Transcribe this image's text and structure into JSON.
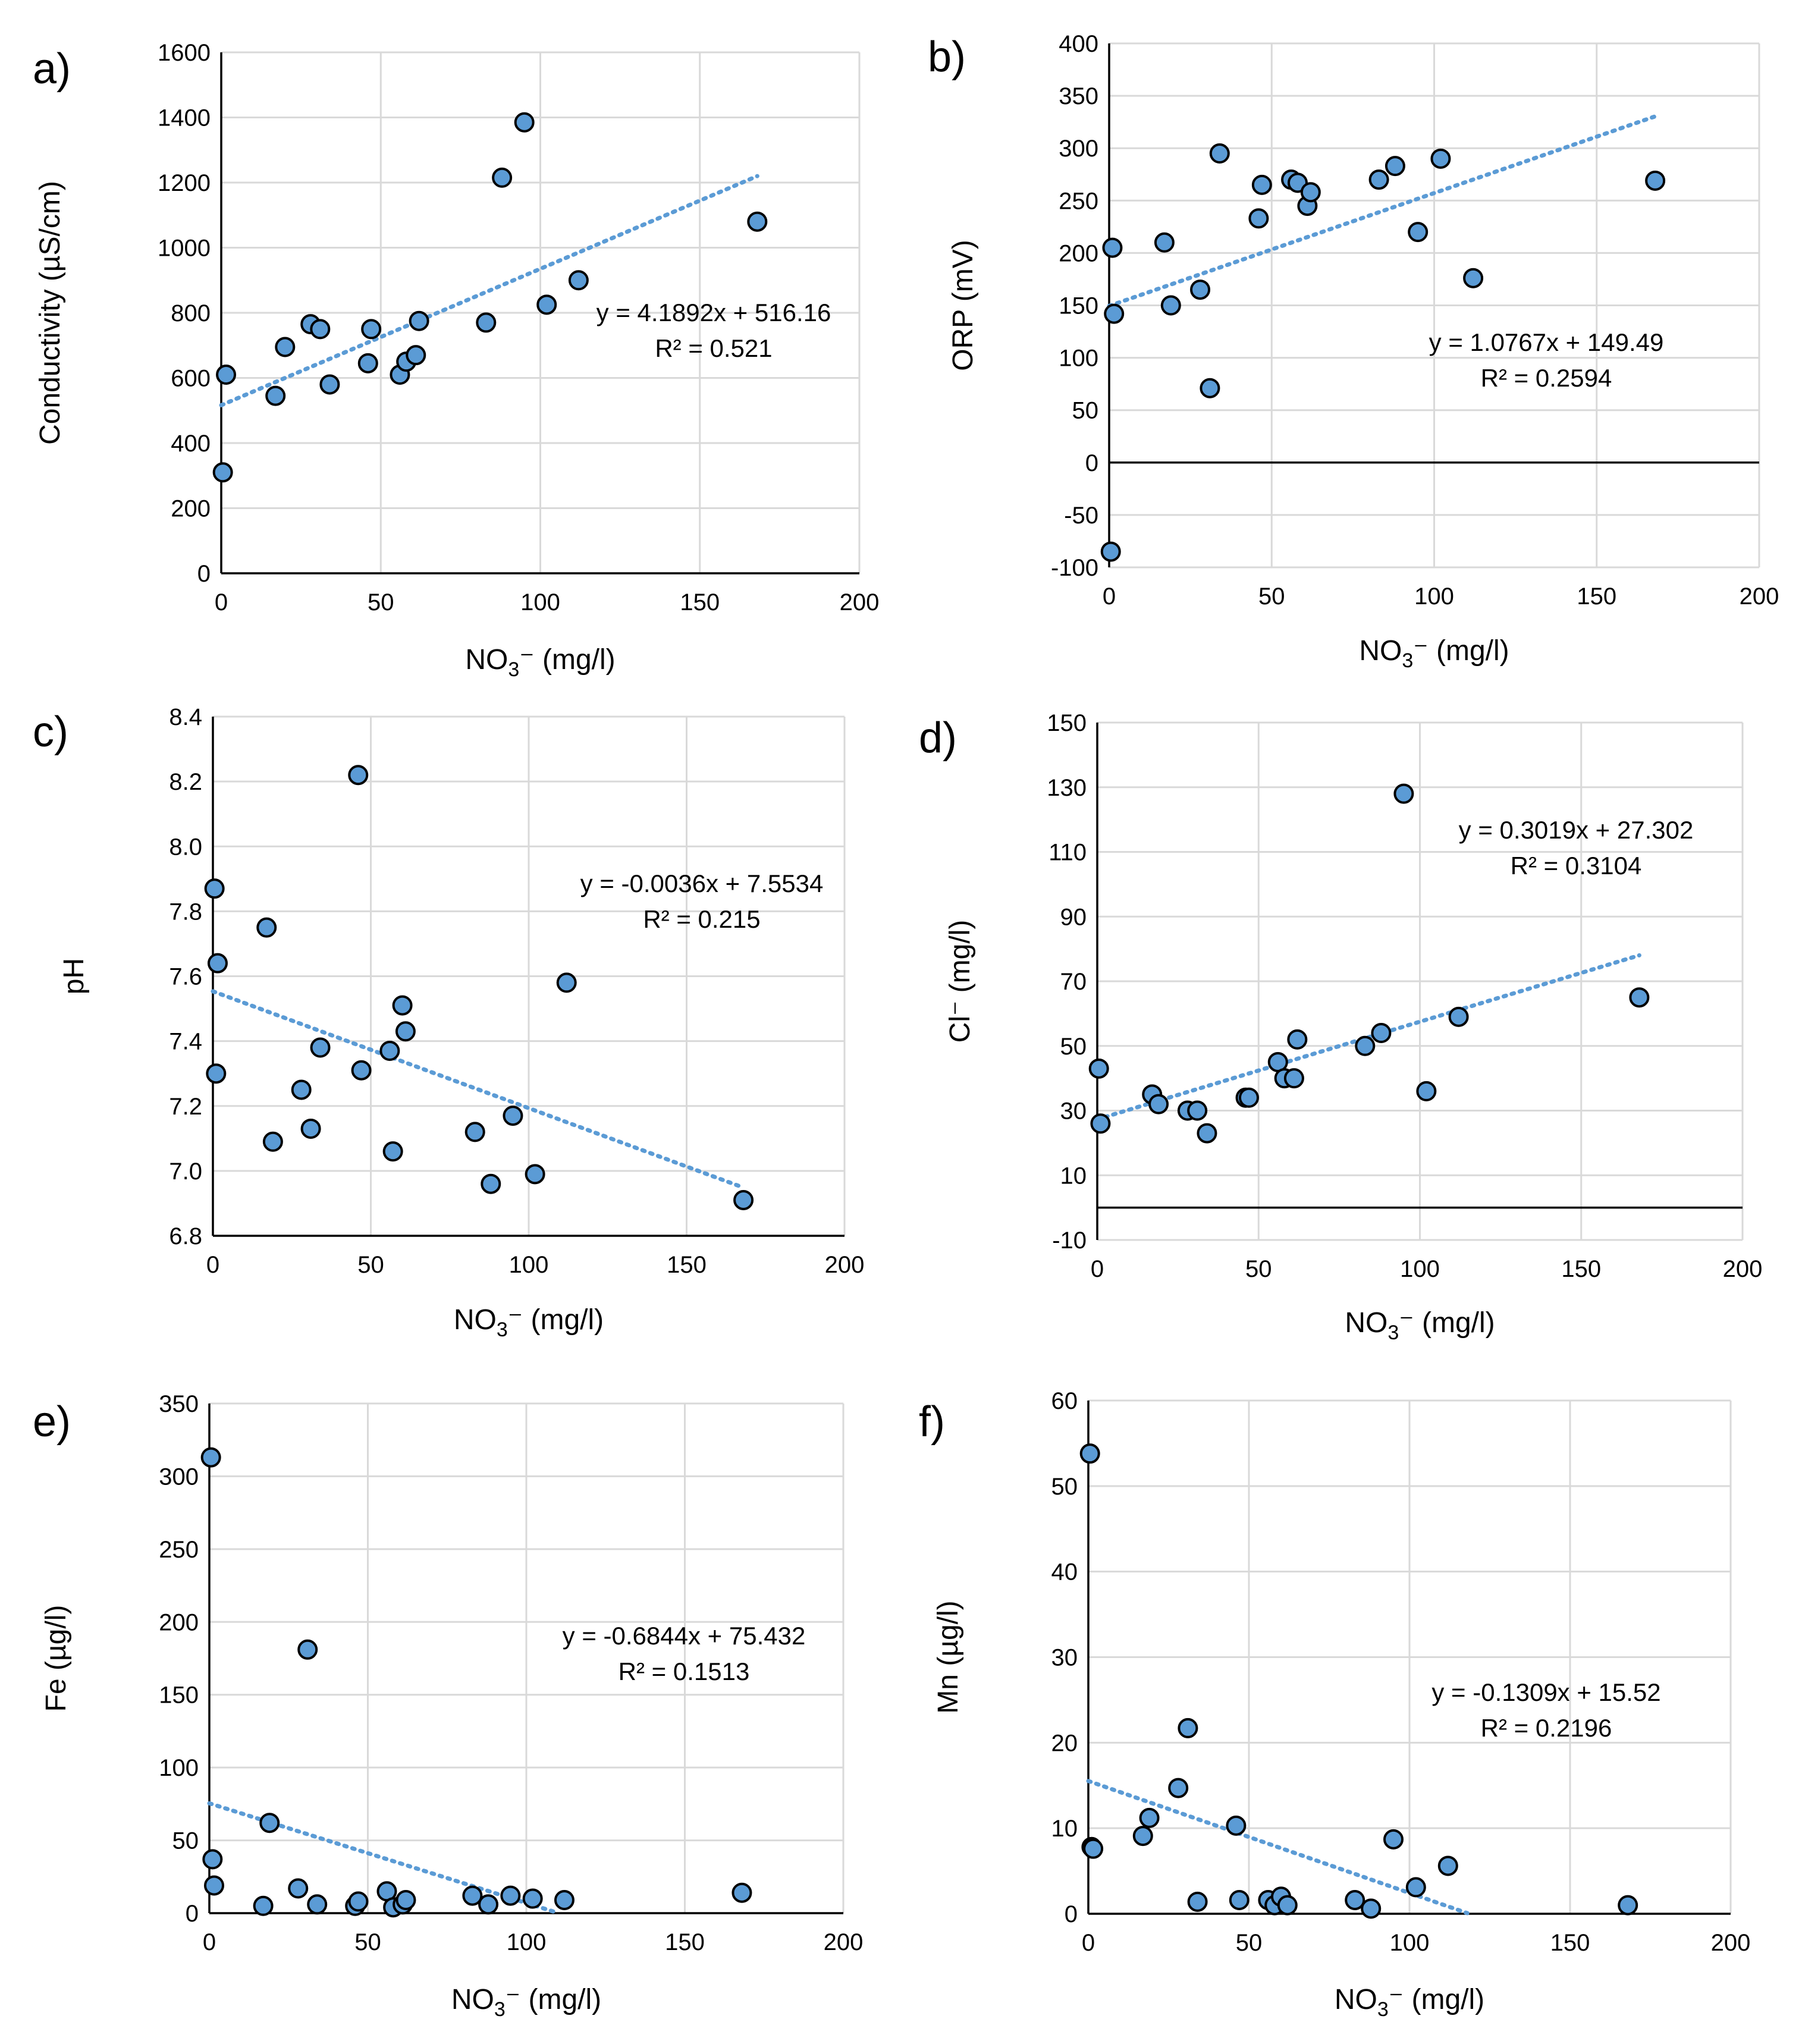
{
  "chart_data": [
    {
      "panel": "a)",
      "type": "scatter",
      "xlabel": "NO3⁻ (mg/l)",
      "xlabel_base": "NO",
      "xlabel_sub": "3",
      "xlabel_rest": "⁻ (mg/l)",
      "ylabel": "Conductivity (µS/cm)",
      "xlim": [
        0,
        200
      ],
      "ylim": [
        0,
        1600
      ],
      "xticks": [
        0,
        50,
        100,
        150,
        200
      ],
      "yticks": [
        0,
        200,
        400,
        600,
        800,
        1000,
        1200,
        1400,
        1600
      ],
      "grid": true,
      "equation": "y = 4.1892x + 516.16",
      "r2": "R² = 0.521",
      "trendline": {
        "slope": 4.1892,
        "intercept": 516.16,
        "x_range": [
          0,
          168
        ]
      },
      "points": [
        [
          0.5,
          310
        ],
        [
          1.5,
          610
        ],
        [
          17,
          545
        ],
        [
          20,
          695
        ],
        [
          28,
          765
        ],
        [
          31,
          750
        ],
        [
          34,
          580
        ],
        [
          46,
          645
        ],
        [
          47,
          750
        ],
        [
          56,
          610
        ],
        [
          58,
          650
        ],
        [
          61,
          670
        ],
        [
          62,
          775
        ],
        [
          83,
          770
        ],
        [
          88,
          1215
        ],
        [
          95,
          1385
        ],
        [
          102,
          825
        ],
        [
          112,
          900
        ],
        [
          168,
          1080
        ]
      ]
    },
    {
      "panel": "b)",
      "type": "scatter",
      "xlabel": "NO3⁻ (mg/l)",
      "xlabel_base": "NO",
      "xlabel_sub": "3",
      "xlabel_rest": "⁻ (mg/l)",
      "ylabel": "ORP (mV)",
      "xlim": [
        0,
        200
      ],
      "ylim": [
        -100,
        400
      ],
      "xticks": [
        0,
        50,
        100,
        150,
        200
      ],
      "yticks": [
        -100,
        -50,
        0,
        50,
        100,
        150,
        200,
        250,
        300,
        350,
        400
      ],
      "grid": true,
      "equation": "y = 1.0767x + 149.49",
      "r2": "R² = 0.2594",
      "trendline": {
        "slope": 1.0767,
        "intercept": 149.49,
        "x_range": [
          0,
          168
        ]
      },
      "points": [
        [
          0.5,
          -85
        ],
        [
          1,
          205
        ],
        [
          1.5,
          142
        ],
        [
          17,
          210
        ],
        [
          19,
          150
        ],
        [
          28,
          165
        ],
        [
          31,
          71
        ],
        [
          34,
          295
        ],
        [
          46,
          233
        ],
        [
          47,
          265
        ],
        [
          56,
          270
        ],
        [
          58,
          267
        ],
        [
          61,
          245
        ],
        [
          62,
          258
        ],
        [
          83,
          270
        ],
        [
          88,
          283
        ],
        [
          95,
          220
        ],
        [
          102,
          290
        ],
        [
          112,
          176
        ],
        [
          168,
          269
        ]
      ]
    },
    {
      "panel": "c)",
      "type": "scatter",
      "xlabel": "NO3⁻ (mg/l)",
      "xlabel_base": "NO",
      "xlabel_sub": "3",
      "xlabel_rest": "⁻ (mg/l)",
      "ylabel": "pH",
      "xlim": [
        0,
        200
      ],
      "ylim": [
        6.8,
        8.4
      ],
      "xticks": [
        0,
        50,
        100,
        150,
        200
      ],
      "yticks": [
        6.8,
        7.0,
        7.2,
        7.4,
        7.6,
        7.8,
        8.0,
        8.2,
        8.4
      ],
      "ytick_labels": [
        "6.8",
        "7.0",
        "7.2",
        "7.4",
        "7.6",
        "7.8",
        "8.0",
        "8.2",
        "8.4"
      ],
      "grid": true,
      "equation": "y = -0.0036x + 7.5534",
      "r2": "R² = 0.215",
      "trendline": {
        "slope": -0.0036,
        "intercept": 7.5534,
        "x_range": [
          0,
          168
        ]
      },
      "points": [
        [
          0.5,
          7.87
        ],
        [
          1,
          7.3
        ],
        [
          1.5,
          7.64
        ],
        [
          17,
          7.75
        ],
        [
          19,
          7.09
        ],
        [
          28,
          7.25
        ],
        [
          31,
          7.13
        ],
        [
          34,
          7.38
        ],
        [
          46,
          8.22
        ],
        [
          47,
          7.31
        ],
        [
          56,
          7.37
        ],
        [
          57,
          7.06
        ],
        [
          60,
          7.51
        ],
        [
          61,
          7.43
        ],
        [
          83,
          7.12
        ],
        [
          88,
          6.96
        ],
        [
          95,
          7.17
        ],
        [
          102,
          6.99
        ],
        [
          112,
          7.58
        ],
        [
          168,
          6.91
        ]
      ]
    },
    {
      "panel": "d)",
      "type": "scatter",
      "xlabel": "NO3⁻ (mg/l)",
      "xlabel_base": "NO",
      "xlabel_sub": "3",
      "xlabel_rest": "⁻ (mg/l)",
      "ylabel": "Cl⁻ (mg/l)",
      "xlim": [
        0,
        200
      ],
      "ylim": [
        -10,
        150
      ],
      "xticks": [
        0,
        50,
        100,
        150,
        200
      ],
      "yticks": [
        -10,
        10,
        30,
        50,
        70,
        90,
        110,
        130,
        150
      ],
      "grid": true,
      "equation": "y = 0.3019x + 27.302",
      "r2": "R² = 0.3104",
      "trendline": {
        "slope": 0.3019,
        "intercept": 27.302,
        "x_range": [
          0,
          168
        ]
      },
      "points": [
        [
          0.5,
          43
        ],
        [
          1,
          26
        ],
        [
          17,
          35
        ],
        [
          19,
          32
        ],
        [
          28,
          30
        ],
        [
          31,
          30
        ],
        [
          34,
          23
        ],
        [
          46,
          34
        ],
        [
          47,
          34
        ],
        [
          56,
          45
        ],
        [
          58,
          40
        ],
        [
          61,
          40
        ],
        [
          62,
          52
        ],
        [
          83,
          50
        ],
        [
          88,
          54
        ],
        [
          95,
          128
        ],
        [
          102,
          36
        ],
        [
          112,
          59
        ],
        [
          168,
          65
        ]
      ]
    },
    {
      "panel": "e)",
      "type": "scatter",
      "xlabel": "NO3⁻ (mg/l)",
      "xlabel_base": "NO",
      "xlabel_sub": "3",
      "xlabel_rest": "⁻ (mg/l)",
      "ylabel": "Fe (µg/l)",
      "xlim": [
        0,
        200
      ],
      "ylim": [
        0,
        350
      ],
      "xticks": [
        0,
        50,
        100,
        150,
        200
      ],
      "yticks": [
        0,
        50,
        100,
        150,
        200,
        250,
        300,
        350
      ],
      "grid": true,
      "equation": "y = -0.6844x + 75.432",
      "r2": "R² = 0.1513",
      "trendline": {
        "slope": -0.6844,
        "intercept": 75.432,
        "x_range": [
          0,
          110
        ]
      },
      "points": [
        [
          0.5,
          313
        ],
        [
          1,
          37
        ],
        [
          1.5,
          19
        ],
        [
          17,
          5
        ],
        [
          19,
          62
        ],
        [
          28,
          17
        ],
        [
          31,
          181
        ],
        [
          34,
          6
        ],
        [
          46,
          5
        ],
        [
          47,
          8
        ],
        [
          56,
          15
        ],
        [
          58,
          4
        ],
        [
          61,
          6
        ],
        [
          62,
          9
        ],
        [
          83,
          12
        ],
        [
          88,
          6
        ],
        [
          95,
          12
        ],
        [
          102,
          10
        ],
        [
          112,
          9
        ],
        [
          168,
          14
        ]
      ]
    },
    {
      "panel": "f)",
      "type": "scatter",
      "xlabel": "NO3⁻ (mg/l)",
      "xlabel_base": "NO",
      "xlabel_sub": "3",
      "xlabel_rest": "⁻ (mg/l)",
      "ylabel": "Mn (µg/l)",
      "xlim": [
        0,
        200
      ],
      "ylim": [
        0,
        60
      ],
      "xticks": [
        0,
        50,
        100,
        150,
        200
      ],
      "yticks": [
        0,
        10,
        20,
        30,
        40,
        50,
        60
      ],
      "grid": true,
      "equation": "y = -0.1309x + 15.52",
      "r2": "R² = 0.2196",
      "trendline": {
        "slope": -0.1309,
        "intercept": 15.52,
        "x_range": [
          0,
          118
        ]
      },
      "points": [
        [
          0.5,
          53.8
        ],
        [
          1,
          7.8
        ],
        [
          1.5,
          7.6
        ],
        [
          17,
          9.1
        ],
        [
          19,
          11.2
        ],
        [
          28,
          14.7
        ],
        [
          31,
          21.7
        ],
        [
          34,
          1.4
        ],
        [
          46,
          10.3
        ],
        [
          47,
          1.6
        ],
        [
          56,
          1.6
        ],
        [
          58,
          1.0
        ],
        [
          60,
          2.0
        ],
        [
          62,
          1.0
        ],
        [
          83,
          1.6
        ],
        [
          88,
          0.6
        ],
        [
          95,
          8.7
        ],
        [
          102,
          3.1
        ],
        [
          112,
          5.6
        ],
        [
          168,
          1.0
        ]
      ]
    }
  ]
}
